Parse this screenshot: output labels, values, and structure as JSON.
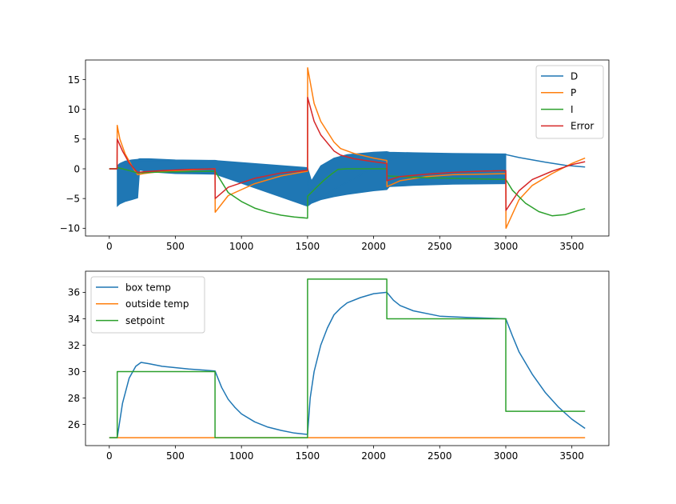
{
  "chart_data": [
    {
      "type": "line",
      "title": "",
      "xlabel": "",
      "ylabel": "",
      "xlim": [
        -180,
        3780
      ],
      "ylim": [
        -11.3,
        18.3
      ],
      "xticks": [
        0,
        500,
        1000,
        1500,
        2000,
        2500,
        3000,
        3500
      ],
      "xtick_labels": [
        "0",
        "500",
        "1000",
        "1500",
        "2000",
        "2500",
        "3000",
        "3500"
      ],
      "yticks": [
        -10,
        -5,
        0,
        5,
        10,
        15
      ],
      "ytick_labels": [
        "−10",
        "−5",
        "0",
        "5",
        "10",
        "15"
      ],
      "legend_position": "upper right",
      "series": [
        {
          "name": "D",
          "color": "#1f77b4",
          "line": {
            "x": [
              0,
              60,
              220,
              800,
              900,
              1100,
              1300,
              1500,
              1510,
              2100,
              2300,
              2600,
              3000,
              3100,
              3300,
              3450,
              3600
            ],
            "y": [
              0,
              0,
              1.4,
              1.4,
              1.0,
              0.6,
              0.3,
              0.1,
              -5.8,
              1.4,
              2.5,
              2.4,
              2.4,
              1.9,
              1.1,
              0.6,
              0.3
            ]
          },
          "oscillation_band": {
            "x": [
              60,
              80,
              120,
              170,
              215,
              230,
              300,
              500,
              800,
              1500,
              1530,
              1600,
              1700,
              1800,
              1900,
              2000,
              2100,
              2120,
              2300,
              2600,
              3000
            ],
            "upper": [
              0.5,
              0.9,
              1.3,
              1.5,
              1.6,
              1.7,
              1.7,
              1.5,
              1.4,
              0.2,
              -2.0,
              0.5,
              1.8,
              2.4,
              2.6,
              2.8,
              2.9,
              2.8,
              2.7,
              2.6,
              2.5
            ],
            "lower": [
              -6.3,
              -5.9,
              -5.5,
              -5.2,
              -4.9,
              -0.2,
              -0.5,
              -0.8,
              -0.9,
              -6.3,
              -5.8,
              -5.2,
              -4.7,
              -4.3,
              -4.0,
              -3.7,
              -3.5,
              -3.0,
              -2.8,
              -2.6,
              -2.5
            ]
          }
        },
        {
          "name": "P",
          "color": "#ff7f0e",
          "x": [
            0,
            59,
            60,
            80,
            120,
            170,
            215,
            260,
            400,
            600,
            800,
            801,
            900,
            1100,
            1300,
            1500,
            1501,
            1550,
            1600,
            1700,
            1750,
            1850,
            2000,
            2100,
            2101,
            2200,
            2400,
            2600,
            2800,
            3000,
            3001,
            3100,
            3200,
            3350,
            3500,
            3600
          ],
          "y": [
            0,
            0,
            7.3,
            5.0,
            2.5,
            0.5,
            -1.0,
            -0.8,
            -0.4,
            -0.2,
            0,
            -7.3,
            -4.5,
            -2.5,
            -1.2,
            -0.4,
            17.0,
            11.0,
            8.0,
            4.5,
            3.4,
            2.6,
            1.8,
            1.4,
            -3.0,
            -2.0,
            -1.3,
            -1.0,
            -0.9,
            -0.8,
            -10.0,
            -5.2,
            -2.8,
            -0.8,
            0.9,
            1.8
          ]
        },
        {
          "name": "I",
          "color": "#2ca02c",
          "x": [
            0,
            59,
            60,
            100,
            150,
            200,
            215,
            300,
            500,
            800,
            900,
            1000,
            1100,
            1200,
            1300,
            1400,
            1500,
            1501,
            1560,
            1620,
            1680,
            1730,
            1800,
            2000,
            2100,
            2101,
            2200,
            2400,
            2600,
            2800,
            3000,
            3050,
            3150,
            3250,
            3350,
            3450,
            3550,
            3600
          ],
          "y": [
            0,
            0,
            0.2,
            0.0,
            -0.3,
            -0.6,
            -0.7,
            -0.6,
            -0.5,
            -0.4,
            -4.0,
            -5.5,
            -6.6,
            -7.3,
            -7.8,
            -8.1,
            -8.3,
            -4.6,
            -3.3,
            -2.0,
            -0.9,
            -0.1,
            0,
            0,
            0,
            -1.2,
            -1.3,
            -1.5,
            -1.6,
            -1.7,
            -1.8,
            -3.6,
            -5.8,
            -7.2,
            -7.9,
            -7.7,
            -7.0,
            -6.7
          ]
        },
        {
          "name": "Error",
          "color": "#d62728",
          "x": [
            0,
            59,
            60,
            100,
            150,
            200,
            215,
            260,
            400,
            600,
            800,
            801,
            900,
            1100,
            1300,
            1500,
            1501,
            1550,
            1600,
            1700,
            1750,
            1850,
            2000,
            2100,
            2101,
            2200,
            2400,
            2600,
            2800,
            3000,
            3001,
            3100,
            3200,
            3350,
            3500,
            3600
          ],
          "y": [
            0,
            0,
            5.0,
            3.0,
            1.0,
            -0.3,
            -0.6,
            -0.5,
            -0.3,
            -0.1,
            0,
            -5.0,
            -3.1,
            -1.6,
            -0.7,
            -0.25,
            12.0,
            8.0,
            5.7,
            3.0,
            2.3,
            1.7,
            1.2,
            0.9,
            -2.0,
            -1.3,
            -0.9,
            -0.6,
            -0.4,
            -0.3,
            -7.0,
            -3.7,
            -1.8,
            -0.4,
            0.7,
            1.2
          ]
        }
      ]
    },
    {
      "type": "line",
      "title": "",
      "xlabel": "",
      "ylabel": "",
      "xlim": [
        -180,
        3780
      ],
      "ylim": [
        24.4,
        37.6
      ],
      "xticks": [
        0,
        500,
        1000,
        1500,
        2000,
        2500,
        3000,
        3500
      ],
      "xtick_labels": [
        "0",
        "500",
        "1000",
        "1500",
        "2000",
        "2500",
        "3000",
        "3500"
      ],
      "yticks": [
        26,
        28,
        30,
        32,
        34,
        36
      ],
      "ytick_labels": [
        "26",
        "28",
        "30",
        "32",
        "34",
        "36"
      ],
      "legend_position": "upper left",
      "series": [
        {
          "name": "box temp",
          "color": "#1f77b4",
          "x": [
            0,
            60,
            100,
            150,
            200,
            240,
            300,
            400,
            600,
            800,
            850,
            900,
            950,
            1000,
            1100,
            1200,
            1300,
            1400,
            1500,
            1520,
            1550,
            1600,
            1650,
            1700,
            1750,
            1800,
            1900,
            2000,
            2100,
            2150,
            2200,
            2300,
            2500,
            2700,
            3000,
            3050,
            3100,
            3200,
            3300,
            3400,
            3500,
            3600
          ],
          "y": [
            25,
            25,
            27.6,
            29.5,
            30.4,
            30.7,
            30.6,
            30.4,
            30.2,
            30.05,
            28.8,
            27.9,
            27.3,
            26.8,
            26.2,
            25.8,
            25.55,
            25.35,
            25.25,
            28.0,
            30.0,
            32.0,
            33.3,
            34.3,
            34.8,
            35.2,
            35.6,
            35.9,
            36.0,
            35.4,
            35.0,
            34.6,
            34.2,
            34.1,
            34.0,
            32.7,
            31.5,
            29.8,
            28.4,
            27.3,
            26.4,
            25.7
          ]
        },
        {
          "name": "outside temp",
          "color": "#ff7f0e",
          "x": [
            0,
            3600
          ],
          "y": [
            25,
            25
          ]
        },
        {
          "name": "setpoint",
          "color": "#2ca02c",
          "x": [
            0,
            60,
            60,
            800,
            800,
            1500,
            1500,
            2100,
            2100,
            3000,
            3000,
            3600
          ],
          "y": [
            25,
            25,
            30,
            30,
            25,
            25,
            37,
            37,
            34,
            34,
            27,
            27
          ]
        }
      ]
    }
  ]
}
